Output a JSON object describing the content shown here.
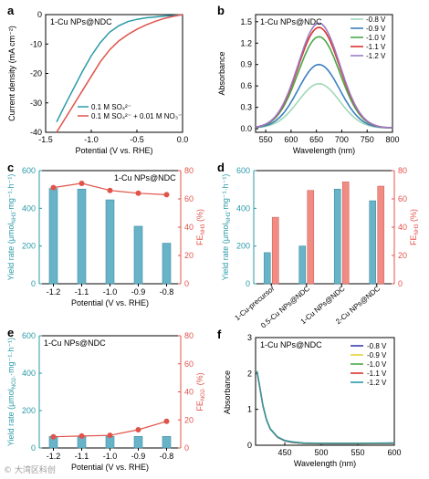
{
  "colors": {
    "teal": "#2a9aa8",
    "red": "#e0534a",
    "bar_teal": "#68b3c8",
    "bar_red": "#f08c84",
    "cv_lightgreen": "#9fd8b8",
    "cv_blue": "#3a7fc0",
    "cv_green": "#4aa84a",
    "cv_red": "#d9362e",
    "cv_purple": "#9b7bc4"
  },
  "watermark": "© 大湾区科创",
  "chart_data": [
    {
      "panel": "a",
      "type": "line",
      "annotation": "1-Cu NPs@NDC",
      "xlabel": "Potential (V vs. RHE)",
      "ylabel": "Current density (mA cm⁻²)",
      "xlim": [
        -1.5,
        0.0
      ],
      "ylim": [
        -40,
        0
      ],
      "xticks": [
        "-1.5",
        "-1.0",
        "-0.5",
        "0.0"
      ],
      "yticks": [
        "-40",
        "-30",
        "-20",
        "-10",
        "0"
      ],
      "legend_position": "bottom-right",
      "series": [
        {
          "name": "0.1 M SO₄²⁻",
          "color": "#2a9aa8",
          "x": [
            -1.38,
            -1.3,
            -1.2,
            -1.1,
            -1.0,
            -0.9,
            -0.8,
            -0.7,
            -0.6,
            -0.5,
            -0.4,
            -0.3,
            -0.2,
            -0.1,
            0.0
          ],
          "y": [
            -36.5,
            -31.5,
            -25.5,
            -19.5,
            -14,
            -9.5,
            -6,
            -3.8,
            -2.4,
            -1.6,
            -1.1,
            -0.8,
            -0.5,
            -0.3,
            0
          ]
        },
        {
          "name": "0.1 M SO₄²⁻ + 0.01 M NO₃⁻",
          "color": "#e0534a",
          "x": [
            -1.38,
            -1.3,
            -1.2,
            -1.1,
            -1.0,
            -0.9,
            -0.8,
            -0.7,
            -0.6,
            -0.5,
            -0.4,
            -0.3,
            -0.2,
            -0.1,
            0.0
          ],
          "y": [
            -40,
            -36,
            -31,
            -26,
            -21,
            -16,
            -12,
            -9,
            -6.8,
            -5,
            -3.5,
            -2.3,
            -1.3,
            -0.6,
            0
          ]
        }
      ]
    },
    {
      "panel": "b",
      "type": "line",
      "annotation": "1-Cu NPs@NDC",
      "xlabel": "Wavelength (nm)",
      "ylabel": "Absorbance",
      "xlim": [
        530,
        800
      ],
      "ylim": [
        -0.05,
        1.6
      ],
      "xticks": [
        "550",
        "600",
        "650",
        "700",
        "750",
        "800"
      ],
      "yticks": [
        "0.0",
        "0.3",
        "0.6",
        "0.9",
        "1.2",
        "1.5"
      ],
      "legend_position": "top-right",
      "peak": 655,
      "series": [
        {
          "name": "-0.8 V",
          "color": "#9fd8b8",
          "peak_value": 0.62
        },
        {
          "name": "-0.9 V",
          "color": "#3a7fc0",
          "peak_value": 0.89
        },
        {
          "name": "-1.0 V",
          "color": "#4aa84a",
          "peak_value": 1.28
        },
        {
          "name": "-1.1 V",
          "color": "#d9362e",
          "peak_value": 1.41
        },
        {
          "name": "-1.2 V",
          "color": "#9b7bc4",
          "peak_value": 1.47
        }
      ]
    },
    {
      "panel": "c",
      "type": "bar",
      "annotation": "1-Cu NPs@NDC",
      "xlabel": "Potential (V vs. RHE)",
      "ylabel": "Yield rate (μmol",
      "ylabel_sub": "NH3",
      "ylabel_tail": "·mg⁻¹·h⁻¹)",
      "y2label": "FE",
      "y2label_sub": "NH3",
      "y2label_tail": " (%)",
      "categories": [
        "-1.2",
        "-1.1",
        "-1.0",
        "-0.9",
        "-0.8"
      ],
      "ylim": [
        0,
        600
      ],
      "yticks": [
        "0",
        "200",
        "400",
        "600"
      ],
      "y2lim": [
        0,
        80
      ],
      "y2ticks": [
        "0",
        "20",
        "40",
        "60",
        "80"
      ],
      "series": [
        {
          "name": "Yield rate",
          "axis": "left",
          "values": [
            505,
            502,
            445,
            305,
            215
          ]
        },
        {
          "name": "FE",
          "axis": "right",
          "values": [
            68,
            71,
            66,
            64,
            63
          ]
        }
      ]
    },
    {
      "panel": "d",
      "type": "bar",
      "xlabel": "",
      "ylabel": "Yield rate (μmol",
      "ylabel_sub": "NH3",
      "ylabel_tail": "·mg⁻¹·h⁻¹)",
      "y2label": "FE",
      "y2label_sub": "NH3",
      "y2label_tail": " (%)",
      "categories": [
        "1-Cu-precursor",
        "0.5-Cu NPs@NDC",
        "1-Cu NPs@NDC",
        "2-Cu NPs@NDC"
      ],
      "ylim": [
        0,
        600
      ],
      "yticks": [
        "0",
        "200",
        "400",
        "600"
      ],
      "y2lim": [
        0,
        80
      ],
      "y2ticks": [
        "0",
        "20",
        "40",
        "60",
        "80"
      ],
      "series": [
        {
          "name": "Yield rate",
          "axis": "left",
          "values": [
            165,
            200,
            502,
            440
          ]
        },
        {
          "name": "FE",
          "axis": "right",
          "values": [
            47,
            66,
            72,
            69
          ]
        }
      ]
    },
    {
      "panel": "e",
      "type": "bar",
      "annotation": "1-Cu NPs@NDC",
      "xlabel": "Potential (V vs. RHE)",
      "ylabel": "Yield rate (μmol",
      "ylabel_sub": "NO2-",
      "ylabel_tail": "·mg⁻¹·h⁻¹)",
      "y2label": "FE",
      "y2label_sub": "NO2-",
      "y2label_tail": " (%)",
      "categories": [
        "-1.2",
        "-1.1",
        "-1.0",
        "-0.9",
        "-0.8"
      ],
      "ylim": [
        0,
        600
      ],
      "yticks": [
        "0",
        "200",
        "400",
        "600"
      ],
      "y2lim": [
        0,
        80
      ],
      "y2ticks": [
        "0",
        "20",
        "40",
        "60",
        "80"
      ],
      "series": [
        {
          "name": "Yield rate",
          "axis": "left",
          "values": [
            62,
            62,
            62,
            62,
            62
          ]
        },
        {
          "name": "FE",
          "axis": "right",
          "values": [
            8,
            8.5,
            9,
            13,
            19
          ]
        }
      ]
    },
    {
      "panel": "f",
      "type": "line",
      "annotation": "1-Cu NPs@NDC",
      "xlabel": "Wavelength (nm)",
      "ylabel": "Absorbance",
      "xlim": [
        410,
        600
      ],
      "ylim": [
        0,
        3
      ],
      "xticks": [
        "450",
        "500",
        "550",
        "600"
      ],
      "yticks": [
        "0",
        "1",
        "2",
        "3"
      ],
      "legend_position": "top-right",
      "series": [
        {
          "name": "-0.8 V",
          "color": "#3b3bb0"
        },
        {
          "name": "-0.9 V",
          "color": "#e6d23c"
        },
        {
          "name": "-1.0 V",
          "color": "#4aa84a"
        },
        {
          "name": "-1.1 V",
          "color": "#d9362e"
        },
        {
          "name": "-1.2 V",
          "color": "#2a9aa8"
        }
      ],
      "curve": {
        "x": [
          412,
          415,
          420,
          425,
          430,
          440,
          450,
          460,
          475,
          500,
          550,
          600
        ],
        "y": [
          2.05,
          1.7,
          1.1,
          0.7,
          0.45,
          0.22,
          0.12,
          0.08,
          0.05,
          0.04,
          0.04,
          0.05
        ]
      }
    }
  ]
}
